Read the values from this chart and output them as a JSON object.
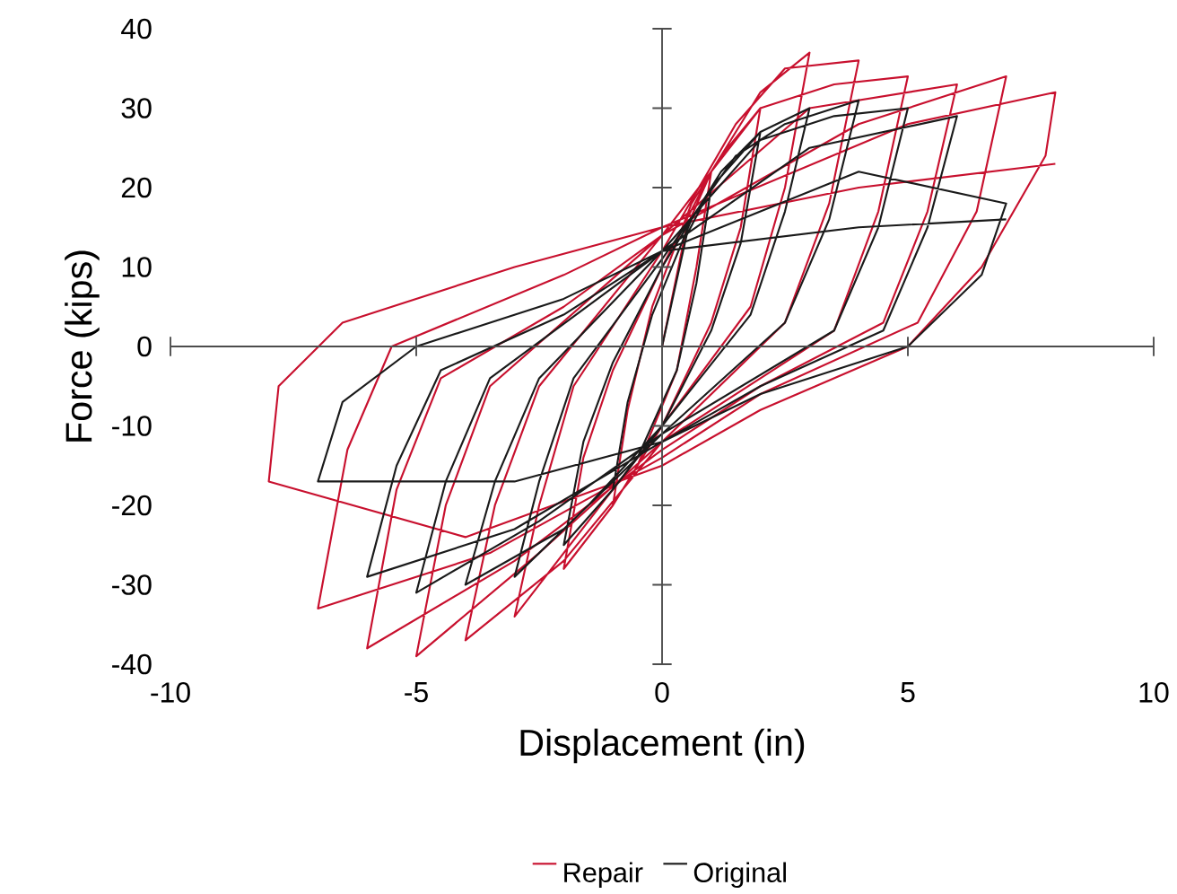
{
  "chart_data": {
    "type": "line",
    "xlabel": "Displacement (in)",
    "ylabel": "Force (kips)",
    "xlim": [
      -10,
      10
    ],
    "ylim": [
      -40,
      40
    ],
    "xticks": [
      -10,
      -5,
      0,
      5,
      10
    ],
    "yticks": [
      -40,
      -30,
      -20,
      -10,
      0,
      10,
      20,
      30,
      40
    ],
    "legend": "bottom",
    "series": [
      {
        "name": "Repair",
        "color": "#c8102e",
        "x": [
          0,
          0.5,
          1,
          0.7,
          0.3,
          -0.5,
          -1,
          -0.7,
          -0.2,
          0.6,
          1.2,
          2,
          1.6,
          1,
          0,
          -1,
          -2,
          -1.6,
          -1,
          0,
          1,
          2,
          3,
          2.5,
          1.8,
          0,
          -1.5,
          -3,
          -2.5,
          -1.8,
          0,
          1.5,
          2.5,
          4,
          3.4,
          2.5,
          0,
          -2,
          -4,
          -3.4,
          -2.5,
          0,
          2,
          3.5,
          5,
          4.4,
          3.5,
          0,
          -2.5,
          -5,
          -4.4,
          -3.5,
          0,
          3,
          6,
          5.4,
          4.5,
          2,
          0,
          -3,
          -6,
          -5.4,
          -4.5,
          -2,
          0,
          4,
          7,
          6.4,
          5.2,
          2,
          0,
          -3.5,
          -7,
          -6.4,
          -5.5,
          -2,
          0,
          5,
          8,
          7.8,
          6.5,
          5,
          2,
          0,
          -4,
          -8,
          -7.8,
          -6.5,
          -3,
          0,
          4,
          8
        ],
        "values": [
          0,
          15,
          22,
          10,
          -3,
          -15,
          -20,
          -8,
          5,
          18,
          24,
          30,
          15,
          3,
          -10,
          -20,
          -28,
          -14,
          -3,
          10,
          22,
          32,
          37,
          20,
          5,
          -10,
          -22,
          -34,
          -20,
          -5,
          12,
          28,
          35,
          36,
          18,
          3,
          -12,
          -27,
          -37,
          -20,
          -5,
          14,
          30,
          33,
          34,
          17,
          2,
          -12,
          -26,
          -39,
          -20,
          -5,
          14,
          30,
          33,
          17,
          3,
          -5,
          -13,
          -27,
          -38,
          -18,
          -4,
          5,
          14,
          28,
          34,
          17,
          3,
          -6,
          -14,
          -26,
          -33,
          -13,
          0,
          9,
          15,
          28,
          32,
          24,
          10,
          0,
          -8,
          -15,
          -24,
          -17,
          -5,
          3,
          10,
          15,
          20,
          23
        ]
      },
      {
        "name": "Original",
        "color": "#1a1a1a",
        "x": [
          0,
          0.5,
          1,
          0.7,
          0.3,
          -0.5,
          -1,
          -0.7,
          -0.2,
          0.6,
          1.2,
          2,
          1.6,
          1,
          0,
          -1,
          -2,
          -1.6,
          -1,
          0,
          1,
          2,
          3,
          2.5,
          1.8,
          0,
          -1.5,
          -3,
          -2.5,
          -1.8,
          0,
          1.5,
          2.5,
          4,
          3.4,
          2.5,
          0,
          -2,
          -4,
          -3.4,
          -2.5,
          0,
          2,
          3.5,
          5,
          4.4,
          3.5,
          0,
          -2.5,
          -5,
          -4.4,
          -3.5,
          0,
          3,
          6,
          5.4,
          4.5,
          2,
          0,
          -3,
          -6,
          -5.4,
          -4.5,
          -2,
          0,
          4,
          7,
          6.5,
          5,
          2,
          0,
          -3,
          -7,
          -6.5,
          -5,
          -2,
          0,
          4,
          7
        ],
        "values": [
          0,
          14,
          20,
          8,
          -3,
          -14,
          -18,
          -7,
          4,
          16,
          22,
          27,
          13,
          2,
          -10,
          -18,
          -25,
          -12,
          -2,
          10,
          20,
          27,
          30,
          17,
          4,
          -10,
          -20,
          -29,
          -17,
          -4,
          11,
          24,
          28,
          31,
          16,
          3,
          -11,
          -23,
          -30,
          -17,
          -4,
          12,
          26,
          29,
          30,
          15,
          2,
          -11,
          -22,
          -31,
          -17,
          -4,
          12,
          25,
          29,
          15,
          2,
          -5,
          -12,
          -23,
          -29,
          -15,
          -3,
          4,
          12,
          22,
          18,
          9,
          0,
          -6,
          -12,
          -17,
          -17,
          -7,
          0,
          6,
          12,
          15,
          16
        ]
      }
    ]
  }
}
